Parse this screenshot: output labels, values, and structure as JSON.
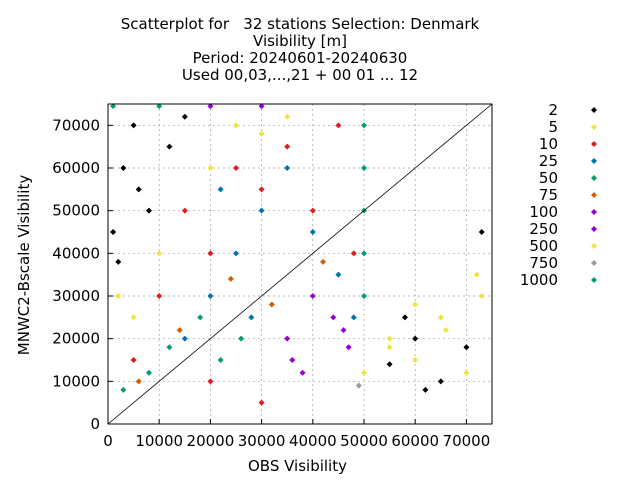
{
  "chart_data": {
    "type": "scatter",
    "title": [
      "Scatterplot for   32 stations Selection: Denmark",
      "Visibility [m]",
      "Period: 20240601-20240630",
      "Used 00,03,...,21 + 00 01 ... 12"
    ],
    "xlabel": "OBS Visibility",
    "ylabel": "MNWC2-Bscale Visibility",
    "xlim": [
      0,
      75000
    ],
    "ylim": [
      0,
      75000
    ],
    "x_ticks": [
      0,
      10000,
      20000,
      30000,
      40000,
      50000,
      60000,
      70000
    ],
    "y_ticks": [
      0,
      10000,
      20000,
      30000,
      40000,
      50000,
      60000,
      70000
    ],
    "grid": true,
    "diagonal": true,
    "legend_position": "right",
    "series": [
      {
        "name": "2",
        "color": "#000000",
        "points": [
          [
            1000,
            45000
          ],
          [
            3000,
            60000
          ],
          [
            5000,
            70000
          ],
          [
            2000,
            38000
          ],
          [
            8000,
            50000
          ],
          [
            12000,
            65000
          ],
          [
            6000,
            55000
          ],
          [
            15000,
            72000
          ],
          [
            55000,
            14000
          ],
          [
            60000,
            20000
          ],
          [
            65000,
            10000
          ],
          [
            70000,
            18000
          ],
          [
            73000,
            45000
          ],
          [
            58000,
            25000
          ],
          [
            62000,
            8000
          ]
        ]
      },
      {
        "name": "5",
        "color": "#f0e442",
        "points": [
          [
            2000,
            30000
          ],
          [
            5000,
            25000
          ],
          [
            10000,
            40000
          ],
          [
            20000,
            60000
          ],
          [
            25000,
            70000
          ],
          [
            55000,
            20000
          ],
          [
            60000,
            15000
          ],
          [
            65000,
            25000
          ],
          [
            70000,
            12000
          ],
          [
            73000,
            30000
          ],
          [
            30000,
            68000
          ],
          [
            35000,
            72000
          ]
        ]
      },
      {
        "name": "10",
        "color": "#e41a1c",
        "points": [
          [
            5000,
            15000
          ],
          [
            10000,
            30000
          ],
          [
            15000,
            50000
          ],
          [
            20000,
            40000
          ],
          [
            25000,
            60000
          ],
          [
            30000,
            55000
          ],
          [
            35000,
            65000
          ],
          [
            40000,
            50000
          ],
          [
            45000,
            70000
          ],
          [
            48000,
            40000
          ],
          [
            20000,
            10000
          ],
          [
            30000,
            5000
          ]
        ]
      },
      {
        "name": "25",
        "color": "#0072b2",
        "points": [
          [
            15000,
            20000
          ],
          [
            20000,
            30000
          ],
          [
            25000,
            40000
          ],
          [
            30000,
            50000
          ],
          [
            35000,
            60000
          ],
          [
            40000,
            45000
          ],
          [
            45000,
            35000
          ],
          [
            48000,
            25000
          ],
          [
            22000,
            55000
          ],
          [
            28000,
            25000
          ]
        ]
      },
      {
        "name": "50",
        "color": "#009e73",
        "points": [
          [
            3000,
            8000
          ],
          [
            8000,
            12000
          ],
          [
            12000,
            18000
          ],
          [
            18000,
            25000
          ],
          [
            22000,
            15000
          ],
          [
            26000,
            20000
          ],
          [
            50000,
            60000
          ],
          [
            50000,
            40000
          ]
        ]
      },
      {
        "name": "75",
        "color": "#d55e00",
        "points": [
          [
            6000,
            10000
          ],
          [
            14000,
            22000
          ],
          [
            24000,
            34000
          ],
          [
            32000,
            28000
          ],
          [
            42000,
            38000
          ]
        ]
      },
      {
        "name": "100",
        "color": "#9400d3",
        "points": [
          [
            35000,
            20000
          ],
          [
            40000,
            30000
          ],
          [
            44000,
            25000
          ],
          [
            38000,
            12000
          ],
          [
            47000,
            18000
          ],
          [
            20000,
            74500
          ],
          [
            30000,
            74500
          ]
        ]
      },
      {
        "name": "250",
        "color": "#9400d3",
        "points": [
          [
            36000,
            15000
          ],
          [
            46000,
            22000
          ]
        ]
      },
      {
        "name": "500",
        "color": "#f0e442",
        "points": [
          [
            50000,
            12000
          ],
          [
            55000,
            18000
          ],
          [
            60000,
            28000
          ],
          [
            66000,
            22000
          ],
          [
            72000,
            35000
          ]
        ]
      },
      {
        "name": "750",
        "color": "#999999",
        "points": [
          [
            49000,
            9000
          ]
        ]
      },
      {
        "name": "1000",
        "color": "#009e73",
        "points": [
          [
            50000,
            50000
          ],
          [
            50000,
            70000
          ],
          [
            50000,
            30000
          ],
          [
            1000,
            74500
          ],
          [
            10000,
            74500
          ]
        ]
      }
    ]
  }
}
